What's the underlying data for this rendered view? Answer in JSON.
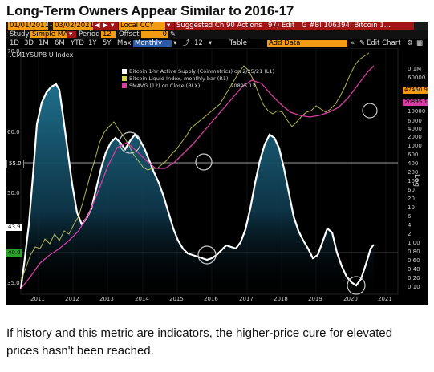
{
  "title": "Long-Term Owners Appear Similar to 2016-17",
  "caption": "If history and this metric are indicators, the higher-price cure for elevated prices hasn't been reached.",
  "terminal": {
    "start_date": "01/01/2011",
    "end_date": "03/02/2021",
    "currency": "Local CCY",
    "suggested_charts": "Suggested Charts",
    "actions": "90 Actions",
    "edit": "97) Edit",
    "security": "G #BI 106394: Bitcoin 1...",
    "study_label": "Study",
    "study_value": "Simple MA",
    "period_label": "Period",
    "period_value": "12",
    "offset_label": "Offset",
    "offset_value": "0",
    "ranges": [
      "1D",
      "3D",
      "1M",
      "6M",
      "YTD",
      "1Y",
      "5Y",
      "Max"
    ],
    "frequency": "Monthly",
    "table_label": "Table",
    "add_data": "Add Data",
    "edit_chart": "Edit Chart",
    "ticker": ".CM1YSUPB U Index",
    "legend": [
      {
        "label": "Bitcoin 1-Yr Active Supply (Coinmetrics) on 2/25/21 (L1)",
        "color": "#ffffff"
      },
      {
        "label": "Bitcoin Liquid Index, monthly bar (R1)",
        "color": "#d4d45a"
      },
      {
        "label": "SMAVG (12) on Close (BLX)",
        "color": "#d63fa0",
        "value": "20895.13"
      }
    ],
    "price_tags": [
      {
        "text": "47460.92",
        "color": "#f39c12"
      },
      {
        "text": "20895.13",
        "color": "#d63fa0"
      }
    ],
    "left_tags": [
      "55.0",
      "43.9",
      "40.0"
    ],
    "left_axis": [
      "70.0",
      "65.0",
      "60.0",
      "55.0",
      "50.0",
      "45.0",
      "40.0",
      "35.0"
    ],
    "right_axis": [
      "0.1M",
      "60000",
      "40000",
      "20000",
      "10000",
      "8000",
      "6000",
      "4000",
      "2000",
      "1000",
      "800",
      "600",
      "400",
      "200",
      "100",
      "80",
      "60",
      "40",
      "20",
      "10",
      "8",
      "6",
      "4",
      "2",
      "1.00",
      "0.80",
      "0.60",
      "0.40",
      "0.20",
      "0.10"
    ],
    "log_label": "Log",
    "x_axis": [
      "2011",
      "2012",
      "2013",
      "2014",
      "2015",
      "2016",
      "2017",
      "2018",
      "2019",
      "2020",
      "2021"
    ]
  },
  "colors": {
    "accent": "#f39c12",
    "supply": "#ffffff",
    "price": "#d4d45a",
    "sma": "#d63fa0",
    "fill": "#2a7fa0"
  }
}
